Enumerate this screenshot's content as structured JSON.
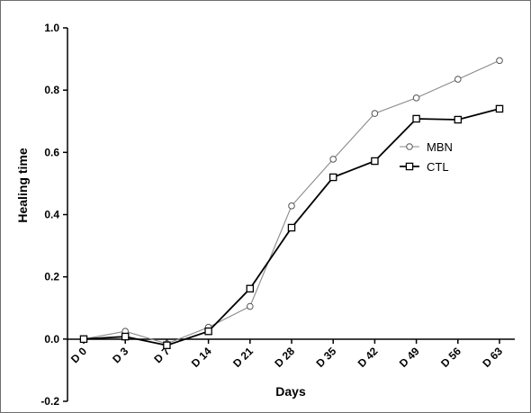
{
  "chart_data": {
    "type": "line",
    "title": "",
    "xlabel": "Days",
    "ylabel": "Healing time",
    "categories": [
      "D 0",
      "D 3",
      "D 7",
      "D 14",
      "D 21",
      "D 28",
      "D 35",
      "D 42",
      "D 49",
      "D 56",
      "D 63"
    ],
    "ylim": [
      -0.2,
      1.0
    ],
    "yticks": [
      "1.0",
      "0.8",
      "0.6",
      "0.4",
      "0.2",
      "0.0",
      "-0.2"
    ],
    "ytick_values": [
      1.0,
      0.8,
      0.6,
      0.4,
      0.2,
      0.0,
      -0.2
    ],
    "grid": false,
    "legend_position": "right",
    "series": [
      {
        "name": "MBN",
        "marker": "circle",
        "color": "#8a8a8a",
        "values": [
          0.0,
          0.025,
          -0.015,
          0.038,
          0.105,
          0.428,
          0.578,
          0.725,
          0.775,
          0.835,
          0.895
        ]
      },
      {
        "name": "CTL",
        "marker": "square",
        "color": "#000000",
        "values": [
          0.0,
          0.008,
          -0.02,
          0.025,
          0.162,
          0.358,
          0.52,
          0.572,
          0.708,
          0.705,
          0.74
        ]
      }
    ]
  }
}
